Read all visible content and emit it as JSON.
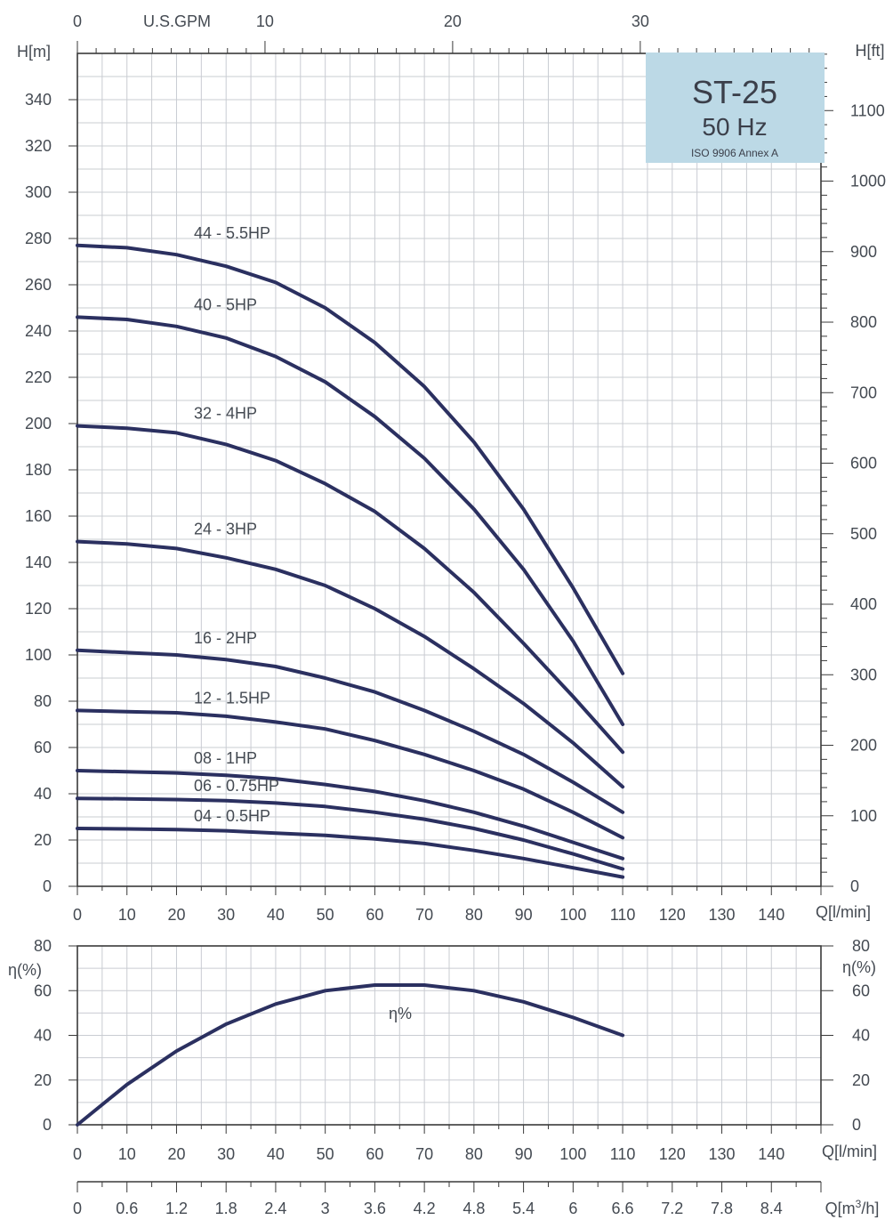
{
  "info_box": {
    "model": "ST-25",
    "frequency": "50 Hz",
    "standard": "ISO 9906 Annex A",
    "background": "#bcd9e6"
  },
  "colors": {
    "curve": "#2b3060",
    "grid": "#c9ccd2",
    "frame": "#3a3a3a",
    "text": "#444a52"
  },
  "chart_data": [
    {
      "type": "line",
      "x_axis": {
        "label": "Q[l/min]",
        "range": [
          0,
          150
        ],
        "ticks": [
          0,
          10,
          20,
          30,
          40,
          50,
          60,
          70,
          80,
          90,
          100,
          110,
          120,
          130,
          140
        ]
      },
      "y_axis": {
        "label": "H[m]",
        "range": [
          0,
          360
        ],
        "ticks": [
          0,
          20,
          40,
          60,
          80,
          100,
          120,
          140,
          160,
          180,
          200,
          220,
          240,
          260,
          280,
          300,
          320,
          340
        ]
      },
      "top_axis": {
        "label": "U.S.GPM",
        "ticks": [
          0,
          10,
          20,
          30
        ],
        "gpm_to_lpm": 3.785
      },
      "right_axis": {
        "label": "H[ft]",
        "ticks": [
          0,
          100,
          200,
          300,
          400,
          500,
          600,
          700,
          800,
          900,
          1000,
          1100
        ],
        "ft_to_m": 0.3048
      },
      "grid": true,
      "series": [
        {
          "name": "44 - 5.5HP",
          "x": [
            0,
            10,
            20,
            30,
            40,
            50,
            60,
            70,
            80,
            90,
            100,
            110
          ],
          "y": [
            277,
            276,
            273,
            268,
            261,
            250,
            235,
            216,
            192,
            163,
            129,
            92
          ]
        },
        {
          "name": "40 - 5HP",
          "x": [
            0,
            10,
            20,
            30,
            40,
            50,
            60,
            70,
            80,
            90,
            100,
            110
          ],
          "y": [
            246,
            245,
            242,
            237,
            229,
            218,
            203,
            185,
            163,
            137,
            106,
            70
          ]
        },
        {
          "name": "32 - 4HP",
          "x": [
            0,
            10,
            20,
            30,
            40,
            50,
            60,
            70,
            80,
            90,
            100,
            110
          ],
          "y": [
            199,
            198,
            196,
            191,
            184,
            174,
            162,
            146,
            127,
            105,
            82,
            58
          ]
        },
        {
          "name": "24 - 3HP",
          "x": [
            0,
            10,
            20,
            30,
            40,
            50,
            60,
            70,
            80,
            90,
            100,
            110
          ],
          "y": [
            149,
            148,
            146,
            142,
            137,
            130,
            120,
            108,
            94,
            79,
            62,
            43
          ]
        },
        {
          "name": "16 - 2HP",
          "x": [
            0,
            10,
            20,
            30,
            40,
            50,
            60,
            70,
            80,
            90,
            100,
            110
          ],
          "y": [
            102,
            101,
            100,
            98,
            95,
            90,
            84,
            76,
            67,
            57,
            45,
            32
          ]
        },
        {
          "name": "12 - 1.5HP",
          "x": [
            0,
            10,
            20,
            30,
            40,
            50,
            60,
            70,
            80,
            90,
            100,
            110
          ],
          "y": [
            76,
            75.5,
            75,
            73.5,
            71,
            68,
            63,
            57,
            50,
            42,
            32,
            21
          ]
        },
        {
          "name": "08 - 1HP",
          "x": [
            0,
            10,
            20,
            30,
            40,
            50,
            60,
            70,
            80,
            90,
            100,
            110
          ],
          "y": [
            50,
            49.5,
            49,
            48,
            46.5,
            44,
            41,
            37,
            32,
            26,
            19,
            12
          ]
        },
        {
          "name": "06 - 0.75HP",
          "x": [
            0,
            10,
            20,
            30,
            40,
            50,
            60,
            70,
            80,
            90,
            100,
            110
          ],
          "y": [
            38,
            37.8,
            37.5,
            37,
            36,
            34.5,
            32,
            29,
            25,
            20,
            14,
            7.5
          ]
        },
        {
          "name": "04 - 0.5HP",
          "x": [
            0,
            10,
            20,
            30,
            40,
            50,
            60,
            70,
            80,
            90,
            100,
            110
          ],
          "y": [
            25,
            24.8,
            24.5,
            24,
            23,
            22,
            20.5,
            18.5,
            15.5,
            12,
            8,
            4
          ]
        }
      ]
    },
    {
      "type": "line",
      "x_axis": {
        "label": "Q[l/min]",
        "range": [
          0,
          150
        ],
        "ticks": [
          0,
          10,
          20,
          30,
          40,
          50,
          60,
          70,
          80,
          90,
          100,
          110,
          120,
          130,
          140
        ]
      },
      "y_axis": {
        "label": "η(%)",
        "range": [
          0,
          80
        ],
        "ticks": [
          0,
          20,
          40,
          60,
          80
        ]
      },
      "right_axis": {
        "label": "η(%)",
        "ticks": [
          0,
          20,
          40,
          60,
          80
        ]
      },
      "grid": true,
      "series": [
        {
          "name": "η%",
          "x": [
            0,
            10,
            20,
            30,
            40,
            50,
            60,
            70,
            80,
            90,
            100,
            110
          ],
          "y": [
            0,
            18,
            33,
            45,
            54,
            60,
            62.5,
            62.5,
            60,
            55,
            48,
            40
          ]
        }
      ]
    },
    {
      "type": "axis",
      "x_axis": {
        "label": "Q[m3/h]",
        "range": [
          0,
          9
        ],
        "ticks": [
          "0",
          "0.6",
          "1.2",
          "1.8",
          "2.4",
          "3",
          "3.6",
          "4.2",
          "4.8",
          "5.4",
          "6",
          "6.6",
          "7.2",
          "7.8",
          "8.4"
        ]
      }
    }
  ]
}
